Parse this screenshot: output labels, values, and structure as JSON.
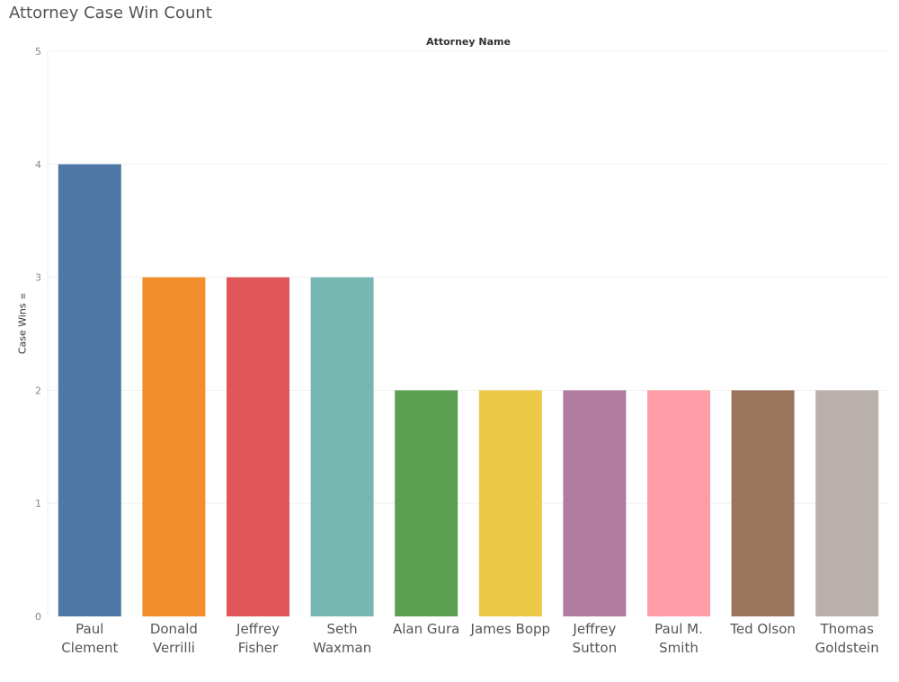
{
  "chart_data": {
    "type": "bar",
    "title": "Attorney Case Win Count",
    "xlabel": "Attorney Name",
    "ylabel": "Case Wins",
    "ylim": [
      0,
      5
    ],
    "yticks": [
      "0",
      "1",
      "2",
      "3",
      "4",
      "5"
    ],
    "grid": true,
    "categories": [
      "Paul Clement",
      "Donald Verrilli",
      "Jeffrey Fisher",
      "Seth Waxman",
      "Alan Gura",
      "James Bopp",
      "Jeffrey Sutton",
      "Paul M. Smith",
      "Ted Olson",
      "Thomas Goldstein"
    ],
    "values": [
      4,
      3,
      3,
      3,
      2,
      2,
      2,
      2,
      2,
      2
    ],
    "colors": [
      "#4e79a7",
      "#f28e2b",
      "#e15759",
      "#76b7b2",
      "#59a14f",
      "#edc948",
      "#b07aa1",
      "#ff9da7",
      "#9c755f",
      "#bab0ac"
    ],
    "sort_icon": "sort-descending-icon"
  }
}
